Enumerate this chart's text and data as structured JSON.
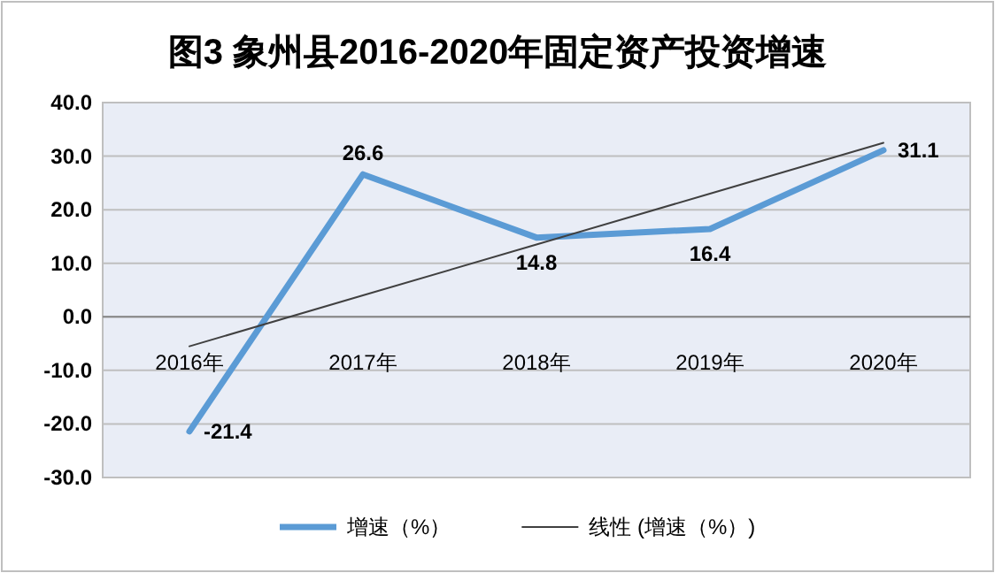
{
  "chart_data": {
    "type": "line",
    "title": "图3 象州县2016-2020年固定资产投资增速",
    "categories": [
      "2016年",
      "2017年",
      "2018年",
      "2019年",
      "2020年"
    ],
    "series": [
      {
        "name": "增速（%）",
        "color": "#5b9bd5",
        "values": [
          -21.4,
          26.6,
          14.8,
          16.4,
          31.1
        ],
        "value_labels": [
          "-21.4",
          "26.6",
          "14.8",
          "16.4",
          "31.1"
        ]
      },
      {
        "name": "线性 (增速（%）)",
        "color": "#404040",
        "type": "line",
        "values": [
          -5.5,
          4.0,
          13.5,
          23.0,
          32.5
        ]
      }
    ],
    "ylim": [
      -30,
      40
    ],
    "yticks": [
      {
        "value": -30,
        "label": "-30.0"
      },
      {
        "value": -20,
        "label": "-20.0"
      },
      {
        "value": -10,
        "label": "-10.0"
      },
      {
        "value": 0,
        "label": "0.0"
      },
      {
        "value": 10,
        "label": "10.0"
      },
      {
        "value": 20,
        "label": "20.0"
      },
      {
        "value": 30,
        "label": "30.0"
      },
      {
        "value": 40,
        "label": "40.0"
      }
    ],
    "grid": "y",
    "legend": "bottom",
    "marker": "none",
    "line_style": "solid"
  }
}
